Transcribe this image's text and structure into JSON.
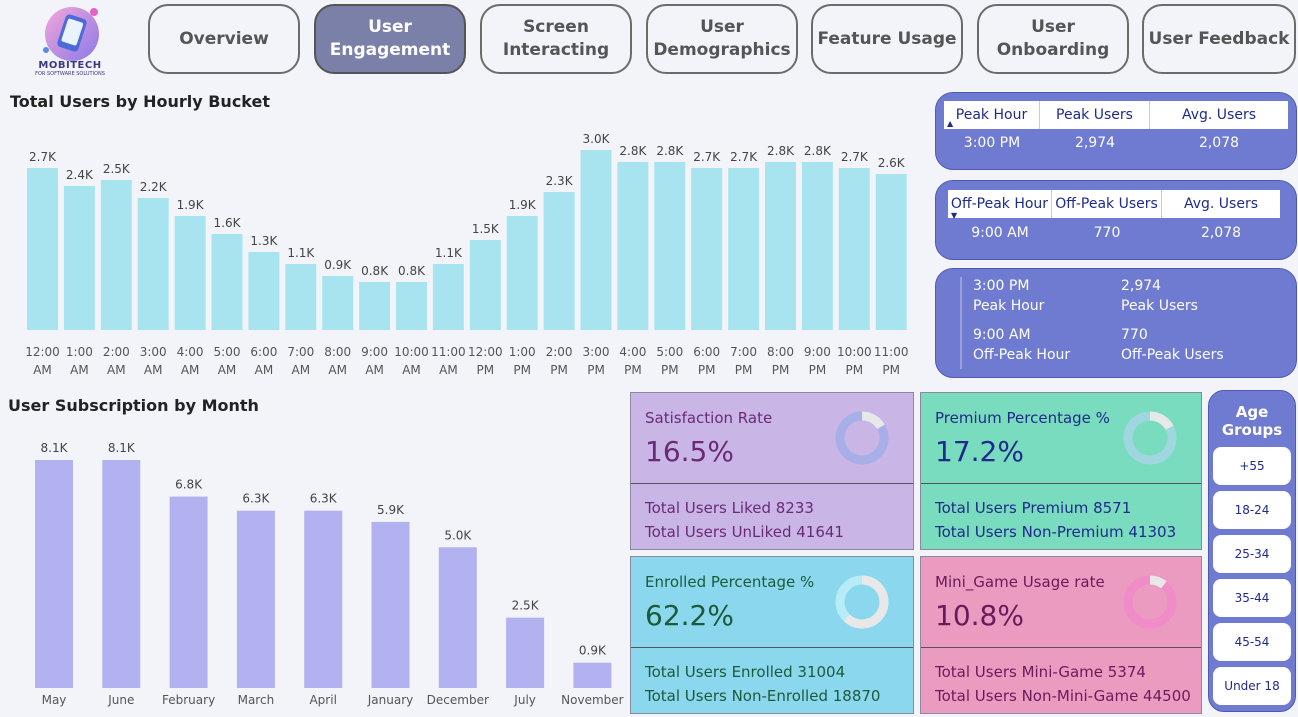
{
  "logo": {
    "brand": "MOBITECH",
    "tagline": "FOR SOFTWARE SOLUTIONS"
  },
  "nav": {
    "tabs": [
      {
        "label": "Overview",
        "active": false
      },
      {
        "label": "User\nEngagement",
        "active": true
      },
      {
        "label": "Screen\nInteracting",
        "active": false
      },
      {
        "label": "User\nDemographics",
        "active": false
      },
      {
        "label": "Feature Usage",
        "active": false
      },
      {
        "label": "User\nOnboarding",
        "active": false
      },
      {
        "label": "User Feedback",
        "active": false
      }
    ]
  },
  "hourly": {
    "title": "Total Users by Hourly Bucket",
    "chart_data": {
      "type": "bar",
      "color": "#a8e4f0",
      "categories": [
        "12:00 AM",
        "1:00 AM",
        "2:00 AM",
        "3:00 AM",
        "4:00 AM",
        "5:00 AM",
        "6:00 AM",
        "7:00 AM",
        "8:00 AM",
        "9:00 AM",
        "10:00 AM",
        "11:00 AM",
        "12:00 PM",
        "1:00 PM",
        "2:00 PM",
        "3:00 PM",
        "4:00 PM",
        "5:00 PM",
        "6:00 PM",
        "7:00 PM",
        "8:00 PM",
        "9:00 PM",
        "10:00 PM",
        "11:00 PM"
      ],
      "tick_top": [
        "12:00",
        "1:00",
        "2:00",
        "3:00",
        "4:00",
        "5:00",
        "6:00",
        "7:00",
        "8:00",
        "9:00",
        "10:00",
        "11:00",
        "12:00",
        "1:00",
        "2:00",
        "3:00",
        "4:00",
        "5:00",
        "6:00",
        "7:00",
        "8:00",
        "9:00",
        "10:00",
        "11:00"
      ],
      "tick_bottom": [
        "AM",
        "AM",
        "AM",
        "AM",
        "AM",
        "AM",
        "AM",
        "AM",
        "AM",
        "AM",
        "AM",
        "AM",
        "PM",
        "PM",
        "PM",
        "PM",
        "PM",
        "PM",
        "PM",
        "PM",
        "PM",
        "PM",
        "PM",
        "PM"
      ],
      "values": [
        2.7,
        2.4,
        2.5,
        2.2,
        1.9,
        1.6,
        1.3,
        1.1,
        0.9,
        0.8,
        0.8,
        1.1,
        1.5,
        1.9,
        2.3,
        3.0,
        2.8,
        2.8,
        2.7,
        2.7,
        2.8,
        2.8,
        2.7,
        2.6
      ],
      "labels": [
        "2.7K",
        "2.4K",
        "2.5K",
        "2.2K",
        "1.9K",
        "1.6K",
        "1.3K",
        "1.1K",
        "0.9K",
        "0.8K",
        "0.8K",
        "1.1K",
        "1.5K",
        "1.9K",
        "2.3K",
        "3.0K",
        "2.8K",
        "2.8K",
        "2.7K",
        "2.7K",
        "2.8K",
        "2.8K",
        "2.7K",
        "2.6K"
      ],
      "ylim": [
        0,
        3.0
      ]
    }
  },
  "monthly": {
    "title": "User Subscription by Month",
    "chart_data": {
      "type": "bar",
      "color": "#b3b2f0",
      "categories": [
        "May",
        "June",
        "February",
        "March",
        "April",
        "January",
        "December",
        "July",
        "November"
      ],
      "values": [
        8.1,
        8.1,
        6.8,
        6.3,
        6.3,
        5.9,
        5.0,
        2.5,
        0.9
      ],
      "labels": [
        "8.1K",
        "8.1K",
        "6.8K",
        "6.3K",
        "6.3K",
        "5.9K",
        "5.0K",
        "2.5K",
        "0.9K"
      ],
      "ylim": [
        0,
        8.1
      ]
    }
  },
  "peak": {
    "headers": [
      "Peak Hour",
      "Peak Users",
      "Avg. Users"
    ],
    "row": [
      "3:00 PM",
      "2,974",
      "2,078"
    ]
  },
  "offpeak": {
    "headers": [
      "Off-Peak Hour",
      "Off-Peak Users",
      "Avg. Users"
    ],
    "row": [
      "9:00 AM",
      "770",
      "2,078"
    ]
  },
  "summary": {
    "peak_hour": "3:00 PM",
    "peak_hour_label": "Peak Hour",
    "peak_users": "2,974",
    "peak_users_label": "Peak Users",
    "off_hour": "9:00 AM",
    "off_hour_label": "Off-Peak Hour",
    "off_users": "770",
    "off_users_label": "Off-Peak Users"
  },
  "kpis": {
    "satisfaction": {
      "label": "Satisfaction Rate",
      "value": "16.5%",
      "percent": 16.5,
      "line1": "Total Users Liked 8233",
      "line2": "Total Users UnLiked 41641",
      "bg": "#c9b6e6",
      "text": "#6a2a78",
      "donut": "#a8aee8"
    },
    "premium": {
      "label": "Premium Percentage %",
      "value": "17.2%",
      "percent": 17.2,
      "line1": "Total Users Premium 8571",
      "line2": "Total Users Non-Premium 41303",
      "bg": "#79dcbf",
      "text": "#1f2a8a",
      "donut": "#9fd6e0"
    },
    "enrolled": {
      "label": "Enrolled Percentage %",
      "value": "62.2%",
      "percent": 62.2,
      "line1": "Total Users Enrolled 31004",
      "line2": "Total Users Non-Enrolled 18870",
      "bg": "#8ad7ee",
      "text": "#1d5a3a",
      "donut": "#b7ecf7"
    },
    "minigame": {
      "label": "Mini_Game Usage rate",
      "value": "10.8%",
      "percent": 10.8,
      "line1": "Total Users Mini-Game 5374",
      "line2": "Total Users Non-Mini-Game 44500",
      "bg": "#ec9bc0",
      "text": "#6a1a5a",
      "donut": "#f08cc7"
    }
  },
  "ages": {
    "title": "Age\nGroups",
    "items": [
      "+55",
      "18-24",
      "25-34",
      "35-44",
      "45-54",
      "Under 18"
    ]
  }
}
